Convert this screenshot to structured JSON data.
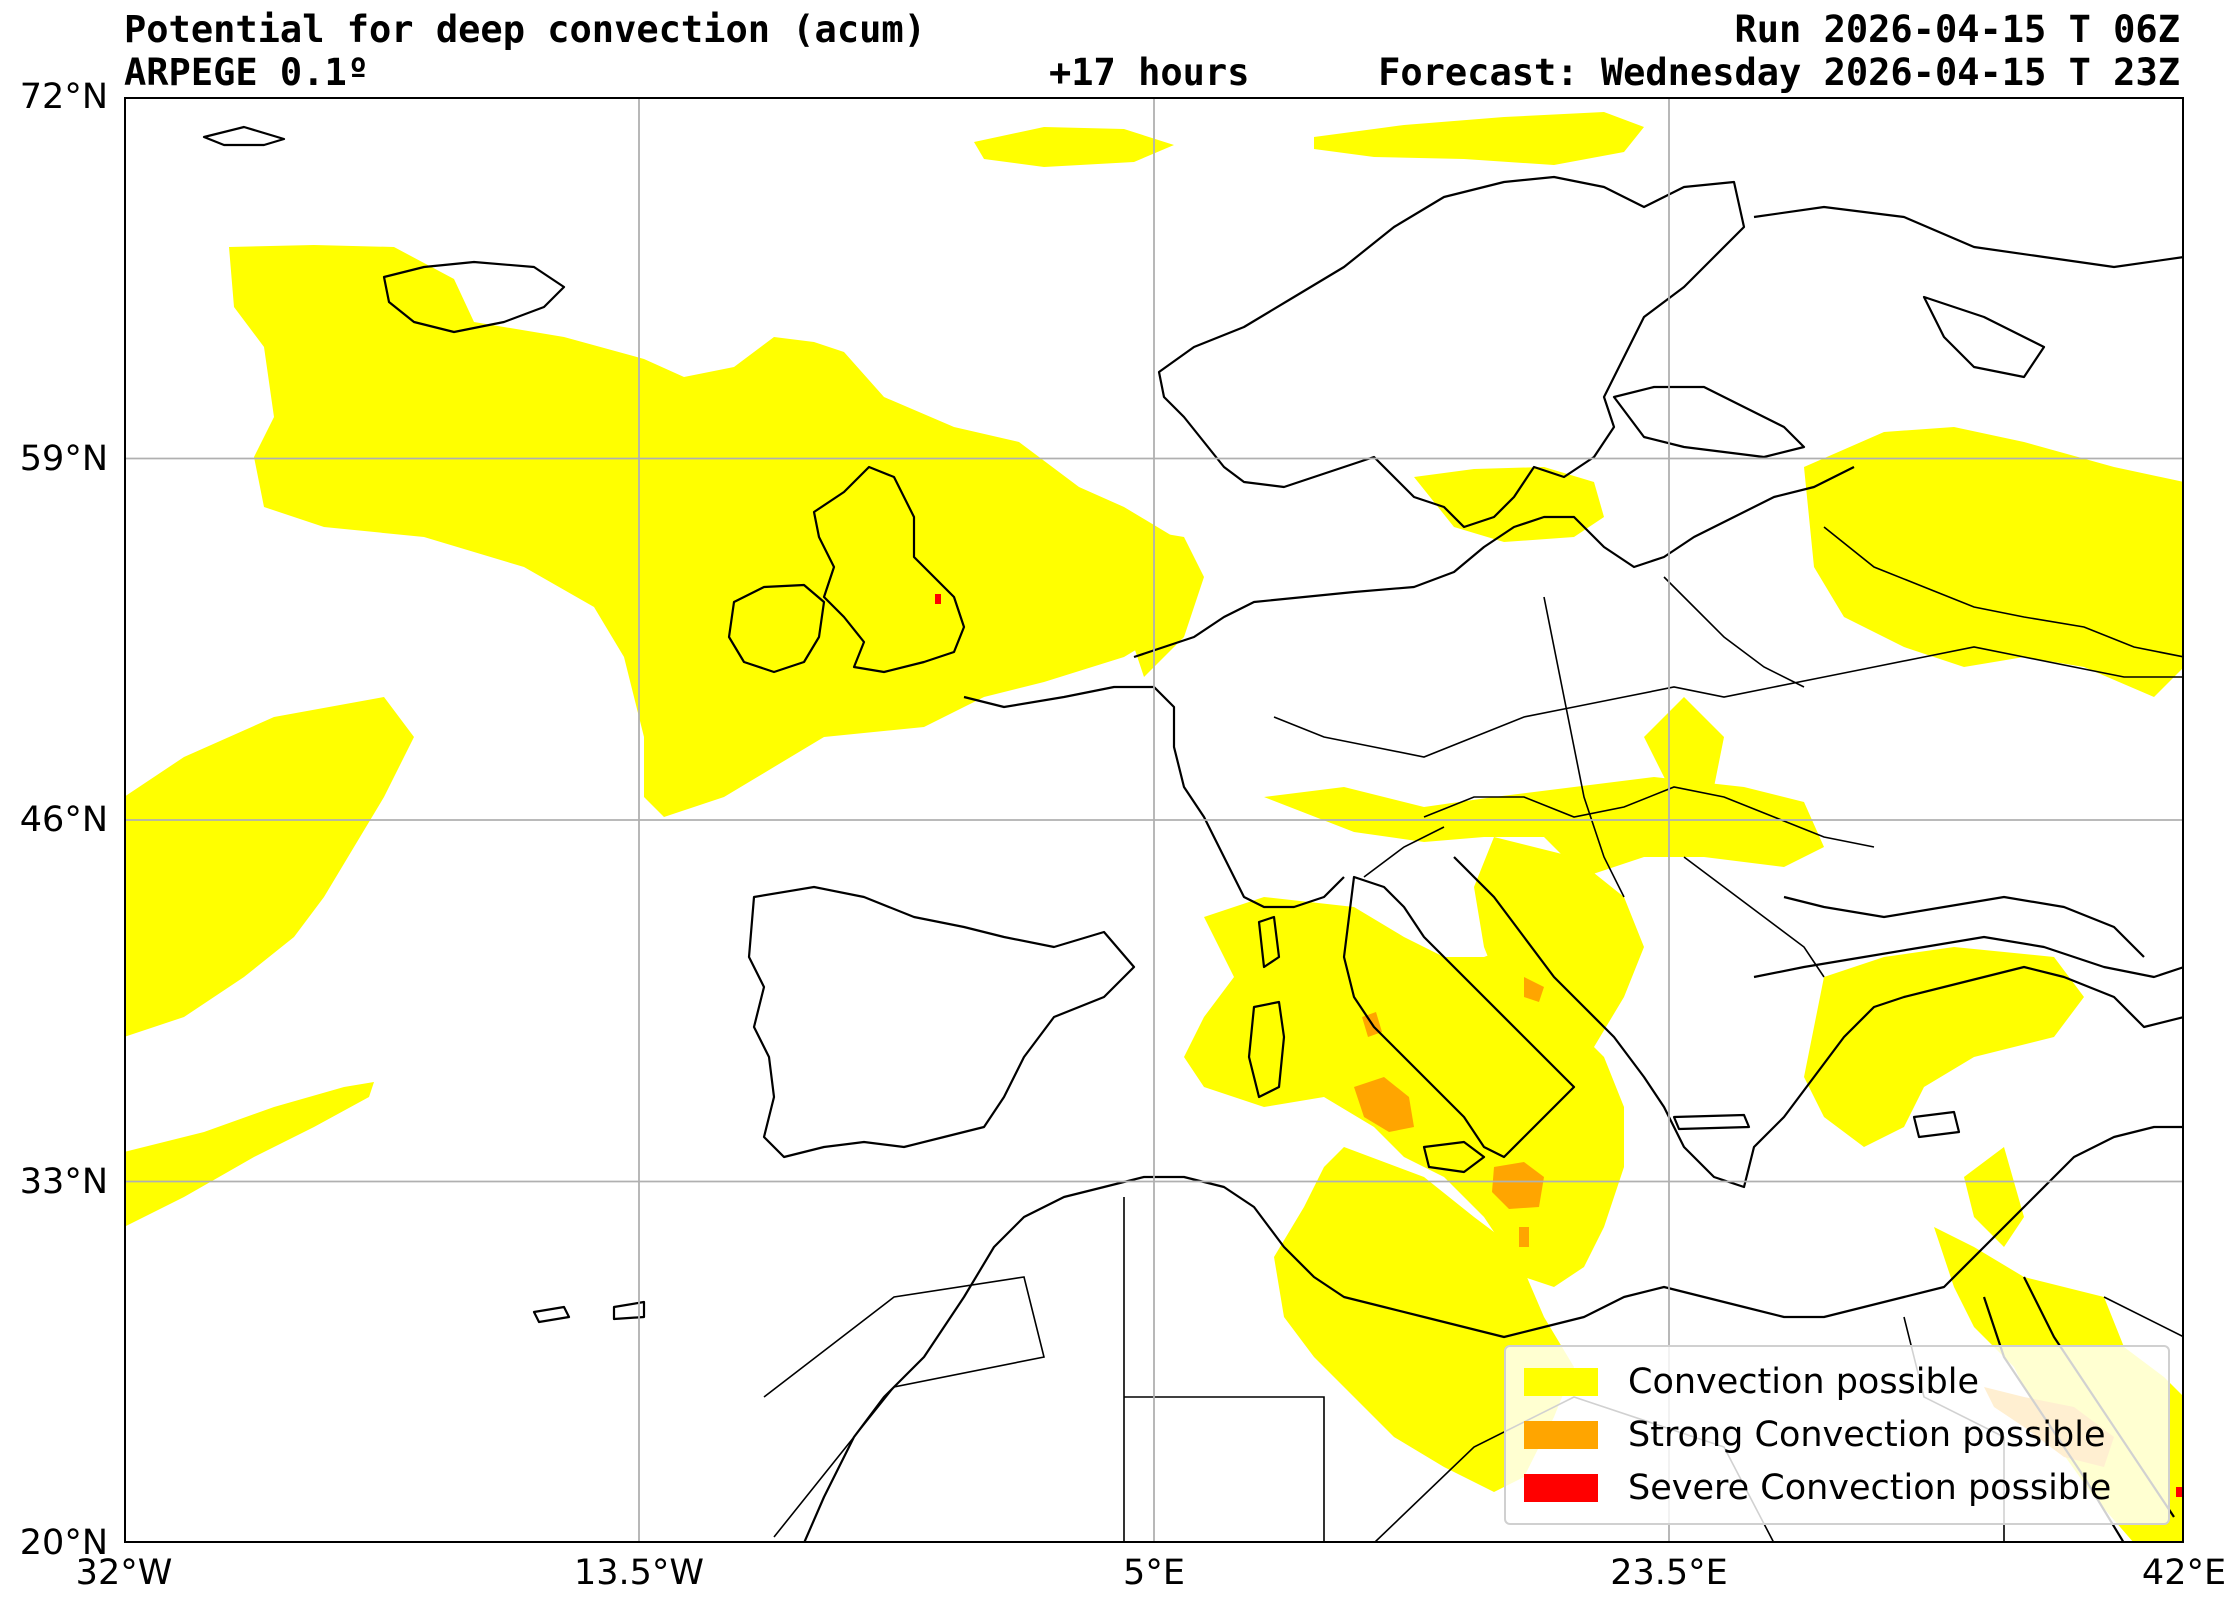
{
  "header": {
    "title": "Potential for deep convection (acum)",
    "model": "ARPEGE 0.1º",
    "lead_time": "+17 hours",
    "run": "Run 2026-04-15 T 06Z",
    "forecast": "Forecast: Wednesday 2026-04-15 T 23Z"
  },
  "axes": {
    "y_ticks": [
      "72°N",
      "59°N",
      "46°N",
      "33°N",
      "20°N"
    ],
    "x_ticks": [
      "32°W",
      "13.5°W",
      "5°E",
      "23.5°E",
      "42°E"
    ],
    "lon_range": [
      -32,
      42
    ],
    "lat_range": [
      20,
      72
    ],
    "grid": true
  },
  "legend": {
    "placement": "bottom-right",
    "items": [
      {
        "label": "Convection possible",
        "color": "#ffff00"
      },
      {
        "label": "Strong Convection possible",
        "color": "#ffa500"
      },
      {
        "label": "Severe Convection possible",
        "color": "#ff0000"
      }
    ]
  },
  "colors": {
    "convection": "#ffff00",
    "strong": "#ffa500",
    "severe": "#ff0000",
    "coastline": "#000000",
    "grid": "#b0b0b0"
  }
}
